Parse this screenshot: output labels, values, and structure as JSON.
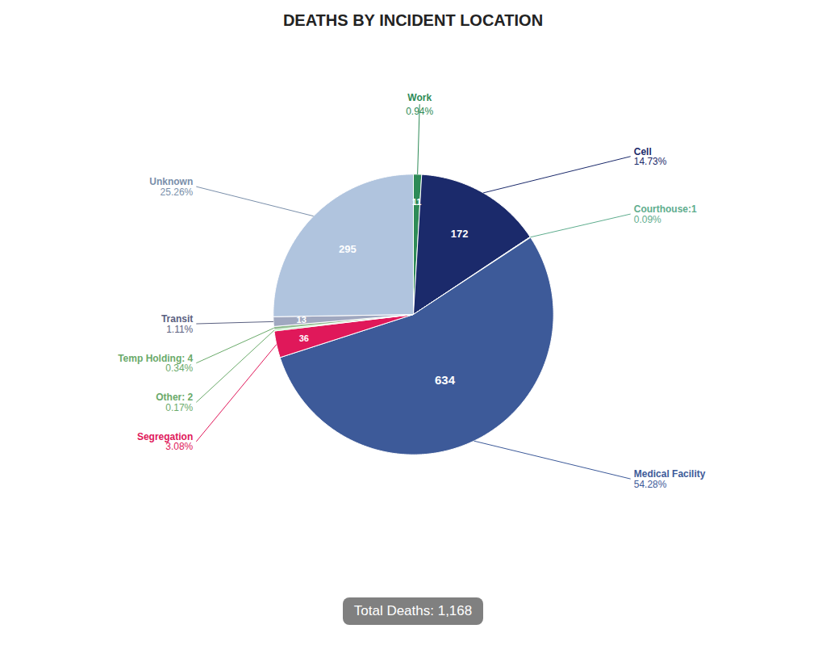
{
  "chart_data": {
    "type": "pie",
    "title": "DEATHS BY INCIDENT LOCATION",
    "categories": [
      "Work",
      "Cell",
      "Courthouse:1",
      "Medical Facility",
      "Segregation",
      "Other: 2",
      "Temp Holding: 4",
      "Transit",
      "Unknown"
    ],
    "values": [
      11,
      172,
      1,
      634,
      36,
      2,
      4,
      13,
      295
    ],
    "value_labels": [
      "11",
      "172",
      null,
      "634",
      "36",
      null,
      null,
      "13",
      "295"
    ],
    "data_labels": true,
    "shares": [
      0.94,
      14.73,
      0.09,
      54.28,
      3.08,
      0.17,
      0.34,
      1.11,
      25.26
    ],
    "share_labels": [
      "0.94%",
      "14.73%",
      "0.09%",
      "54.28%",
      "3.08%",
      "0.17%",
      "0.34%",
      "1.11%",
      "25.26%"
    ],
    "colors": [
      "#2e8b57",
      "#1b2a6b",
      "#5fad8e",
      "#3d5a99",
      "#e0185a",
      "#90ee90",
      "#8fbc8f",
      "#a0a8c0",
      "#b0c4de"
    ],
    "label_colors": [
      "#2e8b57",
      "#1b2a6b",
      "#5fad8e",
      "#3d5a99",
      "#e0185a",
      "#6aaa6a",
      "#6aaa6a",
      "#5a6080",
      "#7a8faa"
    ],
    "caption": "Total Deaths: 1,168"
  }
}
